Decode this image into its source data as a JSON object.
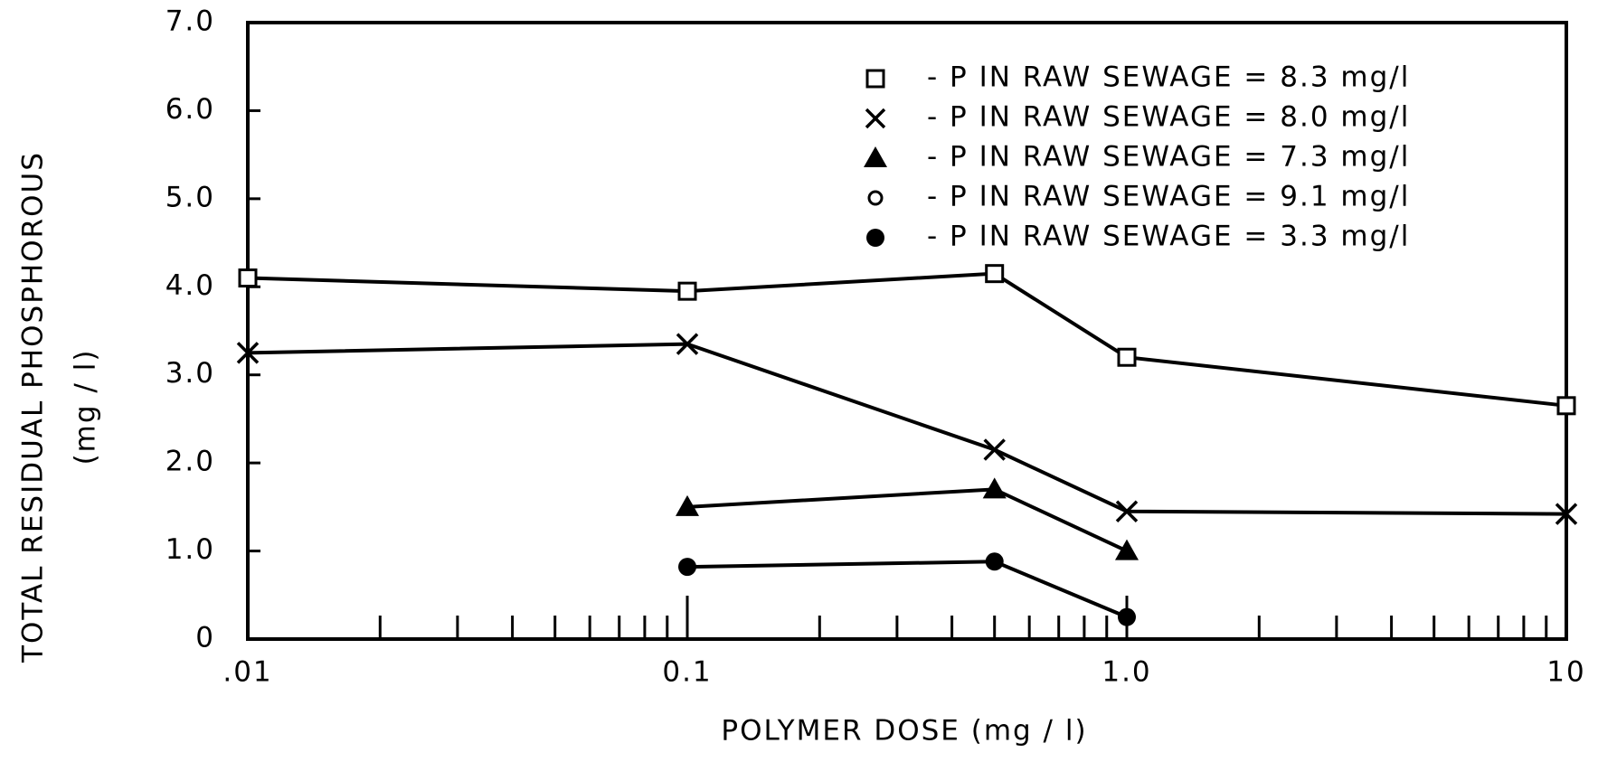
{
  "chart_data": {
    "type": "line",
    "xlabel": "POLYMER DOSE (mg / l)",
    "ylabel": [
      "TOTAL RESIDUAL PHOSPHOROUS",
      "(mg / l)"
    ],
    "xscale": "log",
    "xlim": [
      0.01,
      10
    ],
    "xticks": [
      {
        "value": 0.01,
        "label": ".01"
      },
      0.1,
      {
        "value": 1,
        "label": "1.0"
      },
      10
    ],
    "xminorticks": [
      0.02,
      0.03,
      0.04,
      0.05,
      0.06,
      0.07,
      0.08,
      0.09,
      0.2,
      0.3,
      0.4,
      0.5,
      0.6,
      0.7,
      0.8,
      0.9,
      2,
      3,
      4,
      5,
      6,
      7,
      8,
      9
    ],
    "ylim": [
      0,
      7
    ],
    "yticks": [
      0,
      {
        "value": 1,
        "label": "1.0"
      },
      {
        "value": 2,
        "label": "2.0"
      },
      {
        "value": 3,
        "label": "3.0"
      },
      {
        "value": 4,
        "label": "4.0"
      },
      {
        "value": 5,
        "label": "5.0"
      },
      {
        "value": 6,
        "label": "6.0"
      },
      {
        "value": 7,
        "label": "7.0"
      }
    ],
    "legend": "upper right",
    "color": "#000000",
    "series": [
      {
        "name": "- P IN RAW SEWAGE = 8.3 mg/l",
        "marker": "square",
        "x": [
          0.01,
          0.1,
          0.5,
          1,
          10
        ],
        "values": [
          4.1,
          3.95,
          4.15,
          3.2,
          2.65
        ]
      },
      {
        "name": "- P IN RAW SEWAGE = 8.0 mg/l",
        "marker": "x",
        "x": [
          0.01,
          0.1,
          0.5,
          1,
          10
        ],
        "values": [
          3.25,
          3.35,
          2.15,
          1.45,
          1.42
        ]
      },
      {
        "name": "- P IN RAW SEWAGE = 7.3 mg/l",
        "marker": "triangle",
        "x": [
          0.1,
          0.5,
          1
        ],
        "values": [
          1.5,
          1.7,
          1.0
        ]
      },
      {
        "name": "- P IN RAW SEWAGE = 9.1 mg/l",
        "marker": "circle-open",
        "x": [],
        "values": []
      },
      {
        "name": "- P IN RAW SEWAGE = 3.3 mg/l",
        "marker": "circle",
        "x": [
          0.1,
          0.5,
          1
        ],
        "values": [
          0.82,
          0.88,
          0.25
        ]
      }
    ]
  }
}
